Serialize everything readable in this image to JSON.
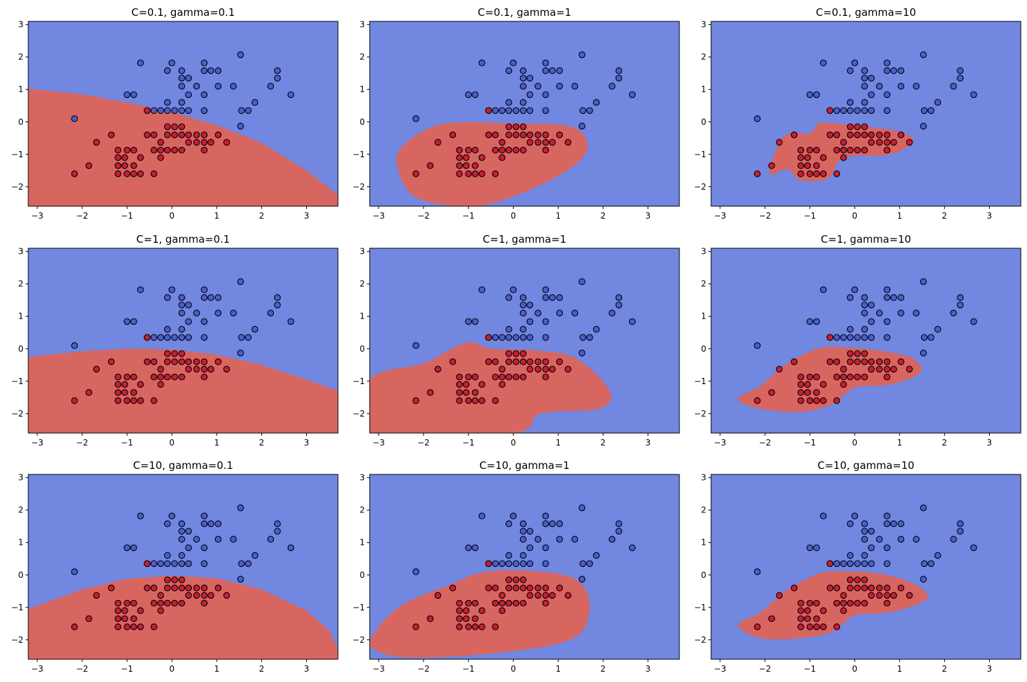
{
  "colors": {
    "class_negative_region": "#7187e0",
    "class_positive_region": "#d86660",
    "class_negative_point": "#4a5fcc",
    "class_positive_point": "#c81e34",
    "point_edge": "#000000",
    "axes_edge": "#000000"
  },
  "chart_data": [
    {
      "type": "scatter",
      "title": "C=0.1, gamma=0.1",
      "C": 0.1,
      "gamma": 0.1,
      "xlim": [
        -3.2,
        3.7
      ],
      "ylim": [
        -2.6,
        3.1
      ],
      "xticks": [
        "−3",
        "−2",
        "−1",
        "0",
        "1",
        "2",
        "3"
      ],
      "yticks": [
        "3",
        "2",
        "1",
        "0",
        "−1",
        "−2"
      ]
    },
    {
      "type": "scatter",
      "title": "C=0.1, gamma=1",
      "C": 0.1,
      "gamma": 1,
      "xlim": [
        -3.2,
        3.7
      ],
      "ylim": [
        -2.6,
        3.1
      ],
      "xticks": [
        "−3",
        "−2",
        "−1",
        "0",
        "1",
        "2",
        "3"
      ],
      "yticks": [
        "3",
        "2",
        "1",
        "0",
        "−1",
        "−2"
      ]
    },
    {
      "type": "scatter",
      "title": "C=0.1, gamma=10",
      "C": 0.1,
      "gamma": 10,
      "xlim": [
        -3.2,
        3.7
      ],
      "ylim": [
        -2.6,
        3.1
      ],
      "xticks": [
        "−3",
        "−2",
        "−1",
        "0",
        "1",
        "2",
        "3"
      ],
      "yticks": [
        "3",
        "2",
        "1",
        "0",
        "−1",
        "−2"
      ]
    },
    {
      "type": "scatter",
      "title": "C=1, gamma=0.1",
      "C": 1,
      "gamma": 0.1,
      "xlim": [
        -3.2,
        3.7
      ],
      "ylim": [
        -2.6,
        3.1
      ],
      "xticks": [
        "−3",
        "−2",
        "−1",
        "0",
        "1",
        "2",
        "3"
      ],
      "yticks": [
        "3",
        "2",
        "1",
        "0",
        "−1",
        "−2"
      ]
    },
    {
      "type": "scatter",
      "title": "C=1, gamma=1",
      "C": 1,
      "gamma": 1,
      "xlim": [
        -3.2,
        3.7
      ],
      "ylim": [
        -2.6,
        3.1
      ],
      "xticks": [
        "−3",
        "−2",
        "−1",
        "0",
        "1",
        "2",
        "3"
      ],
      "yticks": [
        "3",
        "2",
        "1",
        "0",
        "−1",
        "−2"
      ]
    },
    {
      "type": "scatter",
      "title": "C=1, gamma=10",
      "C": 1,
      "gamma": 10,
      "xlim": [
        -3.2,
        3.7
      ],
      "ylim": [
        -2.6,
        3.1
      ],
      "xticks": [
        "−3",
        "−2",
        "−1",
        "0",
        "1",
        "2",
        "3"
      ],
      "yticks": [
        "3",
        "2",
        "1",
        "0",
        "−1",
        "−2"
      ]
    },
    {
      "type": "scatter",
      "title": "C=10, gamma=0.1",
      "C": 10,
      "gamma": 0.1,
      "xlim": [
        -3.2,
        3.7
      ],
      "ylim": [
        -2.6,
        3.1
      ],
      "xticks": [
        "−3",
        "−2",
        "−1",
        "0",
        "1",
        "2",
        "3"
      ],
      "yticks": [
        "3",
        "2",
        "1",
        "0",
        "−1",
        "−2"
      ]
    },
    {
      "type": "scatter",
      "title": "C=10, gamma=1",
      "C": 10,
      "gamma": 1,
      "xlim": [
        -3.2,
        3.7
      ],
      "ylim": [
        -2.6,
        3.1
      ],
      "xticks": [
        "−3",
        "−2",
        "−1",
        "0",
        "1",
        "2",
        "3"
      ],
      "yticks": [
        "3",
        "2",
        "1",
        "0",
        "−1",
        "−2"
      ]
    },
    {
      "type": "scatter",
      "title": "C=10, gamma=10",
      "C": 10,
      "gamma": 10,
      "xlim": [
        -3.2,
        3.7
      ],
      "ylim": [
        -2.6,
        3.1
      ],
      "xticks": [
        "−3",
        "−2",
        "−1",
        "0",
        "1",
        "2",
        "3"
      ],
      "yticks": [
        "3",
        "2",
        "1",
        "0",
        "−1",
        "−2"
      ]
    }
  ],
  "points": {
    "class_negative": [
      [
        -0.7,
        1.82
      ],
      [
        0.0,
        1.82
      ],
      [
        0.72,
        1.82
      ],
      [
        1.53,
        2.07
      ],
      [
        -0.1,
        1.58
      ],
      [
        0.22,
        1.58
      ],
      [
        0.72,
        1.58
      ],
      [
        0.87,
        1.58
      ],
      [
        1.03,
        1.58
      ],
      [
        2.35,
        1.58
      ],
      [
        0.22,
        1.35
      ],
      [
        0.37,
        1.35
      ],
      [
        2.35,
        1.35
      ],
      [
        0.22,
        1.1
      ],
      [
        0.55,
        1.1
      ],
      [
        1.03,
        1.1
      ],
      [
        1.37,
        1.1
      ],
      [
        2.2,
        1.1
      ],
      [
        -1.0,
        0.84
      ],
      [
        -0.85,
        0.84
      ],
      [
        0.37,
        0.84
      ],
      [
        0.72,
        0.84
      ],
      [
        2.65,
        0.84
      ],
      [
        -0.1,
        0.6
      ],
      [
        0.22,
        0.6
      ],
      [
        1.85,
        0.6
      ],
      [
        -0.55,
        0.35
      ],
      [
        -0.4,
        0.35
      ],
      [
        -0.25,
        0.35
      ],
      [
        -0.1,
        0.35
      ],
      [
        0.06,
        0.35
      ],
      [
        0.22,
        0.35
      ],
      [
        0.37,
        0.35
      ],
      [
        0.72,
        0.35
      ],
      [
        1.55,
        0.35
      ],
      [
        1.7,
        0.35
      ],
      [
        1.53,
        -0.13
      ],
      [
        -2.17,
        0.1
      ]
    ],
    "class_positive": [
      [
        -0.55,
        0.35
      ],
      [
        -0.55,
        -0.4
      ],
      [
        -0.4,
        -0.4
      ],
      [
        -0.1,
        -0.4
      ],
      [
        0.06,
        -0.4
      ],
      [
        0.22,
        -0.4
      ],
      [
        0.37,
        -0.4
      ],
      [
        0.55,
        -0.4
      ],
      [
        0.72,
        -0.4
      ],
      [
        1.03,
        -0.4
      ],
      [
        -1.35,
        -0.4
      ],
      [
        -0.1,
        -0.15
      ],
      [
        0.06,
        -0.15
      ],
      [
        0.22,
        -0.15
      ],
      [
        -1.68,
        -0.63
      ],
      [
        -0.25,
        -0.63
      ],
      [
        0.37,
        -0.63
      ],
      [
        0.55,
        -0.63
      ],
      [
        0.72,
        -0.63
      ],
      [
        0.87,
        -0.63
      ],
      [
        1.22,
        -0.63
      ],
      [
        -1.2,
        -0.87
      ],
      [
        -1.0,
        -0.87
      ],
      [
        -0.85,
        -0.87
      ],
      [
        -0.4,
        -0.87
      ],
      [
        -0.25,
        -0.87
      ],
      [
        -0.1,
        -0.87
      ],
      [
        0.06,
        -0.87
      ],
      [
        0.22,
        -0.87
      ],
      [
        0.72,
        -0.87
      ],
      [
        -1.2,
        -1.1
      ],
      [
        -1.05,
        -1.1
      ],
      [
        -0.7,
        -1.1
      ],
      [
        -0.25,
        -1.1
      ],
      [
        -1.2,
        -1.35
      ],
      [
        -1.05,
        -1.35
      ],
      [
        -0.85,
        -1.35
      ],
      [
        -1.85,
        -1.35
      ],
      [
        -1.2,
        -1.6
      ],
      [
        -1.0,
        -1.6
      ],
      [
        -0.85,
        -1.6
      ],
      [
        -0.7,
        -1.6
      ],
      [
        -0.4,
        -1.6
      ],
      [
        -2.17,
        -1.6
      ]
    ]
  }
}
